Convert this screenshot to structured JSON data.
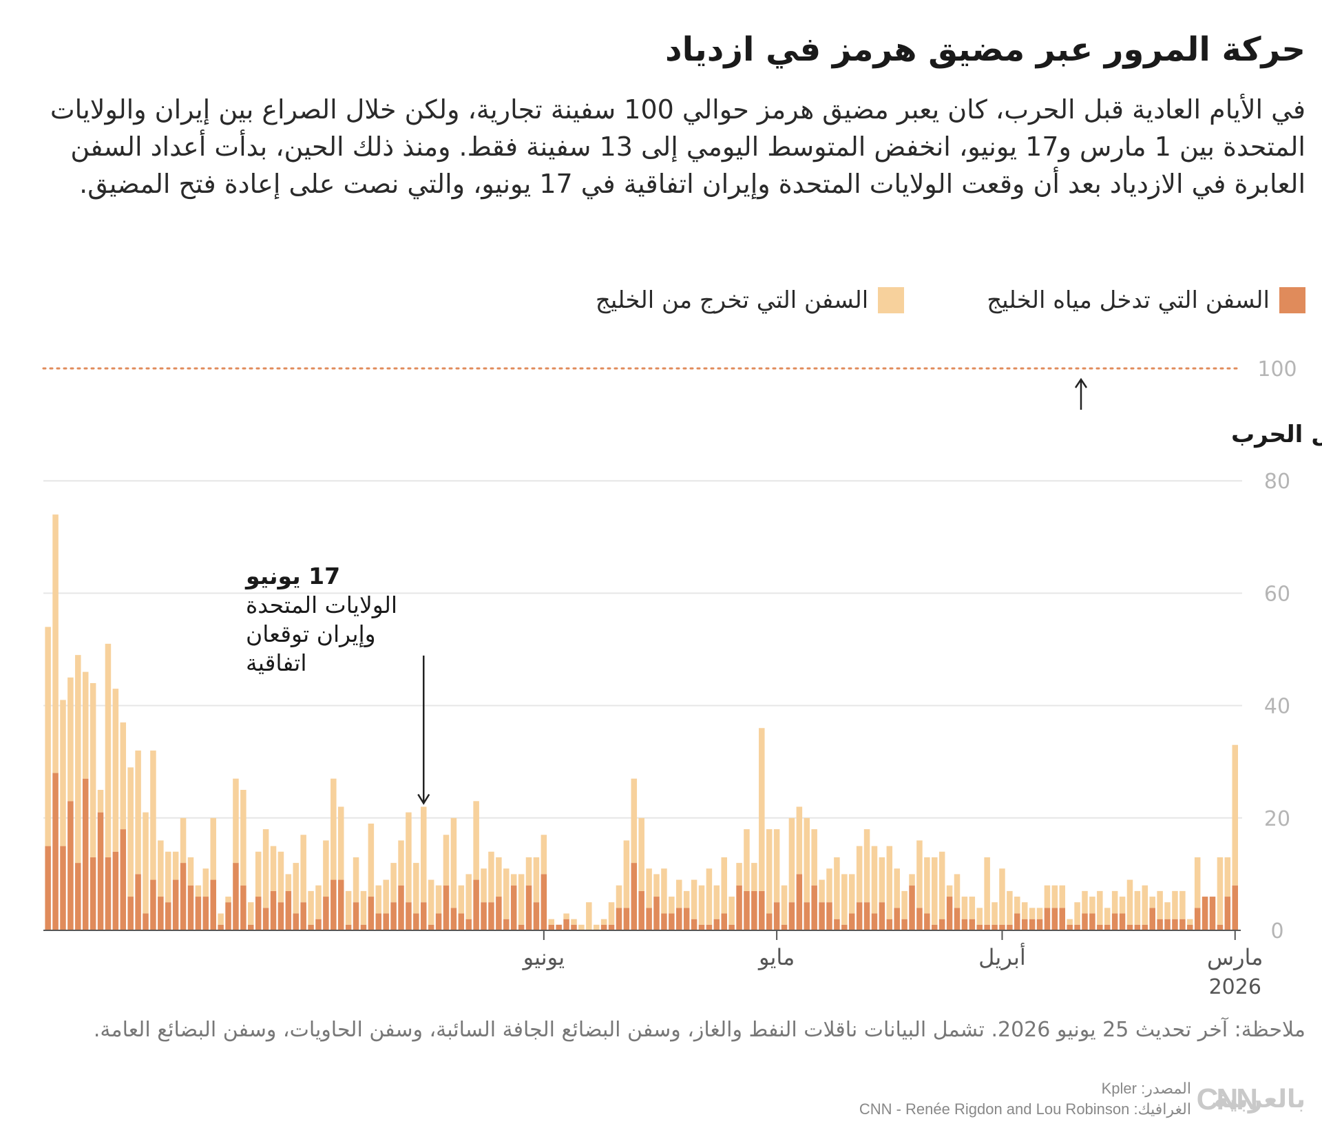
{
  "header": {
    "title": "حركة المرور عبر مضيق هرمز في ازدياد",
    "subtitle": "في الأيام العادية قبل الحرب، كان يعبر مضيق هرمز حوالي 100 سفينة تجارية، ولكن خلال الصراع بين إيران والولايات المتحدة بين 1 مارس و17 يونيو، انخفض المتوسط اليومي إلى 13 سفينة فقط. ومنذ ذلك الحين، بدأت أعداد السفن العابرة في الازدياد بعد أن وقعت الولايات المتحدة وإيران اتفاقية في 17 يونيو، والتي نصت على إعادة فتح المضيق."
  },
  "legend": {
    "inbound": "السفن التي تدخل مياه الخليج",
    "outbound": "السفن التي تخرج من الخليج"
  },
  "colors": {
    "inbound": "#e08b5b",
    "outbound": "#f7d19c",
    "reference": "#e08b5b",
    "grid": "#e6e6e6",
    "axis_text": "#b5b5b5"
  },
  "chart_data": {
    "type": "bar",
    "stacked": true,
    "x_direction": "right-to-left",
    "ylim": [
      0,
      100
    ],
    "yticks": [
      "0",
      "20",
      "40",
      "60",
      "80",
      "100"
    ],
    "reference_line": {
      "value": 100,
      "label": "المتوسط اليومي قبل الحرب"
    },
    "month_labels": [
      {
        "label": "مارس",
        "day_index": 0,
        "sub": "2026"
      },
      {
        "label": "أبريل",
        "day_index": 31
      },
      {
        "label": "مايو",
        "day_index": 61
      },
      {
        "label": "يونيو",
        "day_index": 92
      }
    ],
    "annotation": {
      "date": "17 يونيو",
      "lines": [
        "الولايات المتحدة",
        "وإيران توقعان",
        "اتفاقية"
      ],
      "day_index": 108
    },
    "series": [
      {
        "name": "السفن التي تدخل مياه الخليج",
        "key": "inbound",
        "values": [
          8,
          6,
          1,
          6,
          6,
          4,
          1,
          2,
          2,
          2,
          2,
          4,
          1,
          1,
          1,
          3,
          3,
          1,
          1,
          3,
          3,
          1,
          1,
          4,
          4,
          4,
          2,
          2,
          2,
          3,
          1,
          1,
          1,
          1,
          1,
          2,
          2,
          4,
          6,
          2,
          1,
          3,
          4,
          8,
          2,
          4,
          2,
          5,
          3,
          5,
          5,
          3,
          1,
          2,
          5,
          5,
          8,
          5,
          10,
          5,
          1,
          5,
          3,
          7,
          7,
          7,
          8,
          1,
          3,
          2,
          1,
          1,
          2,
          4,
          4,
          3,
          3,
          6,
          4,
          7,
          12,
          4,
          4,
          1,
          1,
          0,
          0,
          0,
          1,
          2,
          1,
          1,
          10,
          5,
          8,
          1,
          8,
          2,
          6,
          5,
          5,
          9,
          2,
          3,
          4,
          8,
          3,
          1,
          5,
          3,
          5,
          8,
          5,
          3,
          3,
          6,
          1,
          5,
          1,
          9,
          9,
          6,
          2,
          1,
          5,
          3,
          7,
          5,
          7,
          4,
          6,
          1,
          8,
          12,
          5,
          1,
          9,
          6,
          6,
          8,
          12,
          9,
          5,
          6,
          9,
          3,
          10,
          6,
          18,
          14,
          13,
          21,
          13,
          27,
          12,
          23,
          15,
          28,
          15
        ]
      },
      {
        "name": "السفن التي تخرج من الخليج",
        "key": "outbound",
        "values": [
          25,
          7,
          12,
          0,
          0,
          9,
          1,
          5,
          5,
          3,
          5,
          2,
          7,
          6,
          8,
          3,
          4,
          3,
          6,
          3,
          4,
          4,
          1,
          4,
          4,
          4,
          2,
          2,
          3,
          3,
          6,
          10,
          4,
          12,
          3,
          4,
          4,
          6,
          2,
          12,
          12,
          10,
          12,
          2,
          5,
          7,
          13,
          8,
          12,
          13,
          10,
          7,
          9,
          11,
          6,
          4,
          10,
          15,
          12,
          15,
          7,
          13,
          15,
          29,
          5,
          11,
          4,
          5,
          10,
          6,
          10,
          7,
          7,
          3,
          5,
          3,
          8,
          4,
          7,
          13,
          15,
          12,
          4,
          4,
          1,
          1,
          5,
          1,
          1,
          1,
          0,
          1,
          7,
          8,
          5,
          9,
          2,
          9,
          7,
          9,
          6,
          14,
          8,
          5,
          16,
          9,
          5,
          8,
          17,
          9,
          16,
          8,
          7,
          6,
          5,
          13,
          6,
          8,
          6,
          13,
          18,
          10,
          6,
          6,
          12,
          9,
          3,
          9,
          8,
          14,
          8,
          4,
          17,
          15,
          1,
          2,
          11,
          5,
          2,
          5,
          8,
          5,
          9,
          10,
          23,
          18,
          22,
          23,
          19,
          29,
          38,
          4,
          31,
          19,
          37,
          22,
          26,
          46,
          39
        ]
      }
    ]
  },
  "footer": {
    "note": "ملاحظة: آخر تحديث 25 يونيو 2026. تشمل البيانات ناقلات النفط والغاز، وسفن البضائع الجافة السائبة، وسفن الحاويات، وسفن البضائع العامة.",
    "source": "المصدر: Kpler",
    "graphic": "الغرافيك: CNN - Renée Rigdon and Lou Robinson",
    "logo_cnn": "CNN",
    "logo_ar": "بالعربية"
  }
}
